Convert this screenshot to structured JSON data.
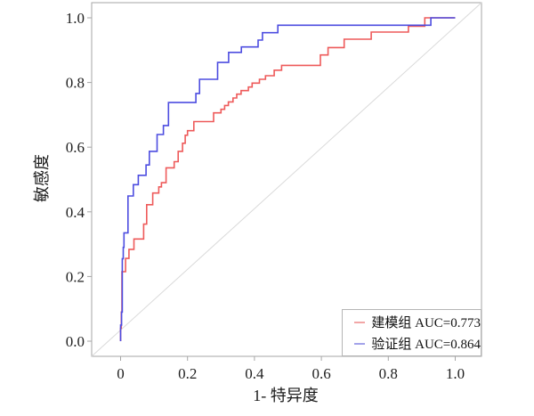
{
  "chart_data": {
    "type": "line",
    "subtype": "roc-step-curves",
    "title": "",
    "xlabel": "1- 特异度",
    "ylabel": "敏感度",
    "x_ticks": [
      0,
      0.2,
      0.4,
      0.6,
      0.8,
      1.0
    ],
    "x_tick_labels": [
      "0",
      "0.2",
      "0.4",
      "0.6",
      "0.8",
      "1.0"
    ],
    "y_ticks": [
      0,
      0.2,
      0.4,
      0.6,
      0.8,
      1.0
    ],
    "y_tick_labels": [
      "0.0",
      "0.2",
      "0.4",
      "0.6",
      "0.8",
      "1.0"
    ],
    "xlim": [
      -0.086,
      1.078
    ],
    "ylim": [
      -0.047,
      1.047
    ],
    "grid": false,
    "legend_position": "bottom-right",
    "reference_line": {
      "from": [
        0,
        0
      ],
      "to": [
        1,
        1
      ],
      "color": "#d9d9d9"
    },
    "series": [
      {
        "name": "建模组 AUC=0.773",
        "auc": 0.773,
        "color": "#ee5a5a",
        "legend_swatch_color": "#f2a6a6",
        "points": [
          [
            0,
            0
          ],
          [
            0,
            0.04
          ],
          [
            0.002,
            0.04
          ],
          [
            0.002,
            0.09
          ],
          [
            0.004,
            0.09
          ],
          [
            0.004,
            0.215
          ],
          [
            0.015,
            0.215
          ],
          [
            0.015,
            0.256
          ],
          [
            0.025,
            0.256
          ],
          [
            0.025,
            0.284
          ],
          [
            0.04,
            0.284
          ],
          [
            0.04,
            0.316
          ],
          [
            0.069,
            0.316
          ],
          [
            0.069,
            0.362
          ],
          [
            0.078,
            0.362
          ],
          [
            0.078,
            0.422
          ],
          [
            0.096,
            0.422
          ],
          [
            0.096,
            0.458
          ],
          [
            0.114,
            0.458
          ],
          [
            0.114,
            0.477
          ],
          [
            0.122,
            0.477
          ],
          [
            0.122,
            0.49
          ],
          [
            0.136,
            0.49
          ],
          [
            0.136,
            0.536
          ],
          [
            0.16,
            0.536
          ],
          [
            0.16,
            0.555
          ],
          [
            0.172,
            0.555
          ],
          [
            0.172,
            0.587
          ],
          [
            0.185,
            0.587
          ],
          [
            0.185,
            0.612
          ],
          [
            0.193,
            0.612
          ],
          [
            0.193,
            0.637
          ],
          [
            0.2,
            0.637
          ],
          [
            0.2,
            0.651
          ],
          [
            0.219,
            0.651
          ],
          [
            0.219,
            0.679
          ],
          [
            0.278,
            0.679
          ],
          [
            0.278,
            0.706
          ],
          [
            0.3,
            0.706
          ],
          [
            0.3,
            0.717
          ],
          [
            0.311,
            0.717
          ],
          [
            0.311,
            0.729
          ],
          [
            0.322,
            0.729
          ],
          [
            0.322,
            0.74
          ],
          [
            0.336,
            0.74
          ],
          [
            0.336,
            0.752
          ],
          [
            0.347,
            0.752
          ],
          [
            0.347,
            0.764
          ],
          [
            0.36,
            0.764
          ],
          [
            0.36,
            0.775
          ],
          [
            0.382,
            0.775
          ],
          [
            0.382,
            0.786
          ],
          [
            0.393,
            0.786
          ],
          [
            0.393,
            0.798
          ],
          [
            0.415,
            0.798
          ],
          [
            0.415,
            0.81
          ],
          [
            0.433,
            0.81
          ],
          [
            0.433,
            0.821
          ],
          [
            0.459,
            0.821
          ],
          [
            0.459,
            0.838
          ],
          [
            0.481,
            0.838
          ],
          [
            0.481,
            0.853
          ],
          [
            0.597,
            0.853
          ],
          [
            0.597,
            0.885
          ],
          [
            0.62,
            0.885
          ],
          [
            0.62,
            0.908
          ],
          [
            0.668,
            0.908
          ],
          [
            0.668,
            0.934
          ],
          [
            0.749,
            0.934
          ],
          [
            0.749,
            0.956
          ],
          [
            0.86,
            0.956
          ],
          [
            0.86,
            0.974
          ],
          [
            0.909,
            0.974
          ],
          [
            0.909,
            1
          ],
          [
            1,
            1
          ]
        ]
      },
      {
        "name": "验证组 AUC=0.864",
        "auc": 0.864,
        "color": "#4d4de0",
        "legend_swatch_color": "#a3a3ea",
        "points": [
          [
            0,
            0
          ],
          [
            0,
            0.05
          ],
          [
            0.003,
            0.05
          ],
          [
            0.003,
            0.09
          ],
          [
            0.005,
            0.09
          ],
          [
            0.005,
            0.255
          ],
          [
            0.008,
            0.255
          ],
          [
            0.008,
            0.29
          ],
          [
            0.01,
            0.29
          ],
          [
            0.01,
            0.335
          ],
          [
            0.022,
            0.335
          ],
          [
            0.022,
            0.449
          ],
          [
            0.038,
            0.449
          ],
          [
            0.038,
            0.484
          ],
          [
            0.053,
            0.484
          ],
          [
            0.053,
            0.513
          ],
          [
            0.076,
            0.513
          ],
          [
            0.076,
            0.545
          ],
          [
            0.086,
            0.545
          ],
          [
            0.086,
            0.587
          ],
          [
            0.109,
            0.587
          ],
          [
            0.109,
            0.639
          ],
          [
            0.128,
            0.639
          ],
          [
            0.128,
            0.667
          ],
          [
            0.143,
            0.667
          ],
          [
            0.143,
            0.738
          ],
          [
            0.225,
            0.738
          ],
          [
            0.225,
            0.766
          ],
          [
            0.236,
            0.766
          ],
          [
            0.236,
            0.81
          ],
          [
            0.29,
            0.81
          ],
          [
            0.29,
            0.862
          ],
          [
            0.323,
            0.862
          ],
          [
            0.323,
            0.893
          ],
          [
            0.361,
            0.893
          ],
          [
            0.361,
            0.91
          ],
          [
            0.411,
            0.91
          ],
          [
            0.411,
            0.931
          ],
          [
            0.424,
            0.931
          ],
          [
            0.424,
            0.954
          ],
          [
            0.47,
            0.954
          ],
          [
            0.47,
            0.977
          ],
          [
            0.927,
            0.977
          ],
          [
            0.927,
            1
          ],
          [
            1,
            1
          ]
        ]
      }
    ]
  },
  "colors": {
    "axis_line": "#a6a6a6",
    "tick_text": "#1f1f1f",
    "diagonal": "#d9d9d9",
    "legend_border": "#b5b5b5",
    "background": "#ffffff"
  }
}
